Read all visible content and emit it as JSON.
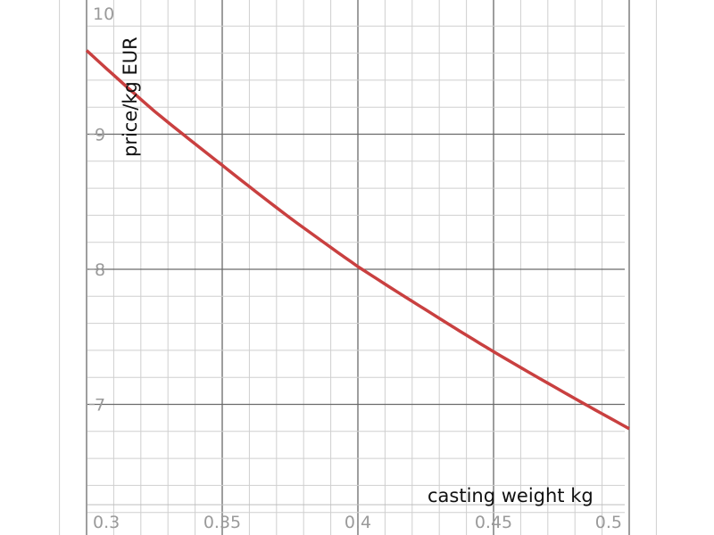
{
  "chart_data": {
    "type": "line",
    "xlabel": "casting weight kg",
    "ylabel": "price/kg EUR",
    "xlim": [
      0.3,
      0.5
    ],
    "ylim": [
      6.2,
      10
    ],
    "x_ticks": [
      "0.3",
      "0.35",
      "0.4",
      "0.45",
      "0.5"
    ],
    "y_ticks": [
      "7",
      "8",
      "9",
      "10"
    ],
    "grid": true,
    "series": [
      {
        "x": [
          0.3,
          0.325,
          0.35,
          0.375,
          0.4,
          0.425,
          0.45,
          0.475,
          0.5
        ],
        "y": [
          9.62,
          9.17,
          8.77,
          8.38,
          8.02,
          7.7,
          7.39,
          7.1,
          6.82
        ],
        "color": "#c94040"
      }
    ]
  }
}
